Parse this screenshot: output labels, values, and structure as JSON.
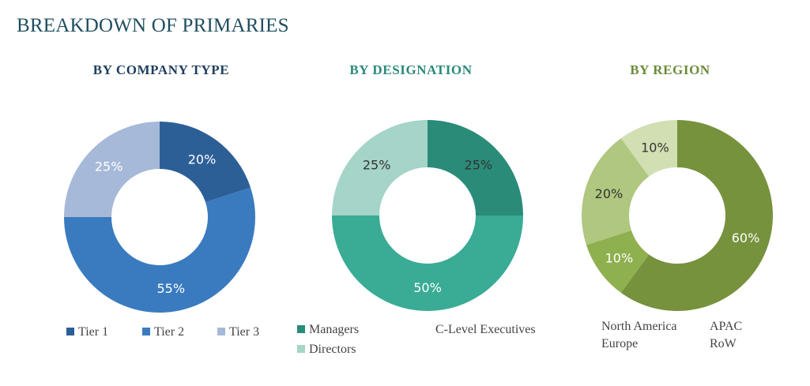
{
  "title": "BREAKDOWN OF PRIMARIES",
  "chart_data": [
    {
      "type": "pie",
      "title": "BY COMPANY TYPE",
      "title_color": "#1f3f5f",
      "categories": [
        "Tier 1",
        "Tier 2",
        "Tier 3"
      ],
      "values": [
        20,
        55,
        25
      ],
      "labels": [
        "20%",
        "55%",
        "25%"
      ],
      "colors": [
        "#2d5f97",
        "#3a7bbf",
        "#a7b9d8"
      ],
      "label_colors": [
        "#ffffff",
        "#ffffff",
        "#ffffff"
      ],
      "legend_position": "bottom"
    },
    {
      "type": "pie",
      "title": "BY DESIGNATION",
      "title_color": "#2a8a7a",
      "categories": [
        "C-Level Executives",
        "Managers",
        "Directors"
      ],
      "values": [
        25,
        50,
        25
      ],
      "labels": [
        "25%",
        "50%",
        "25%"
      ],
      "colors": [
        "#2a8b79",
        "#3aab95",
        "#a5d4c8"
      ],
      "label_colors": [
        "#333333",
        "#ffffff",
        "#333333"
      ],
      "legend_position": "bottom"
    },
    {
      "type": "pie",
      "title": "BY REGION",
      "title_color": "#6b8c3a",
      "categories": [
        "North America",
        "APAC",
        "Europe",
        "RoW"
      ],
      "values": [
        60,
        10,
        20,
        10
      ],
      "labels": [
        "60%",
        "10%",
        "20%",
        "10%"
      ],
      "colors": [
        "#76923c",
        "#8fb04e",
        "#afc77e",
        "#d1dfb3"
      ],
      "label_colors": [
        "#ffffff",
        "#ffffff",
        "#333333",
        "#333333"
      ],
      "legend_position": "bottom"
    }
  ]
}
